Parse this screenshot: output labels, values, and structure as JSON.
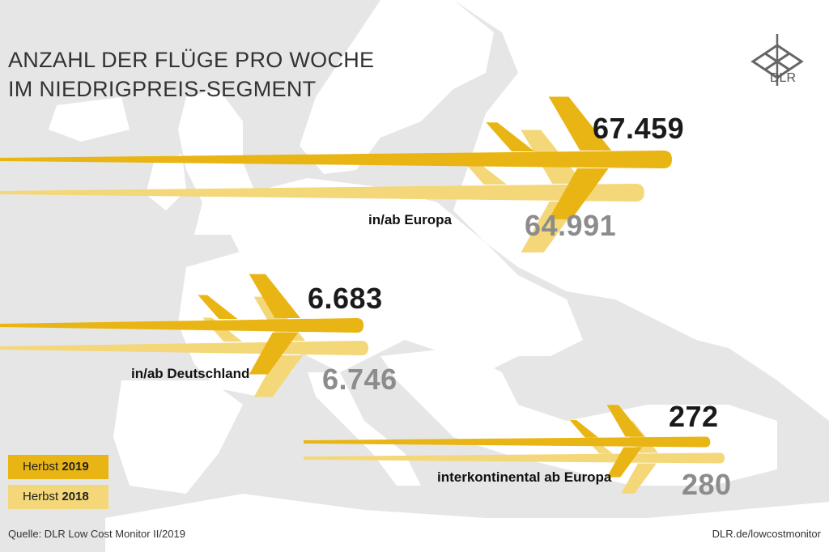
{
  "title": {
    "line1": "ANZAHL DER FLÜGE PRO WOCHE",
    "line2": "IM NIEDRIGPREIS-SEGMENT"
  },
  "logo": {
    "text": "DLR",
    "icon": "dlr-logo-icon"
  },
  "colors": {
    "series_2019": "#e9b514",
    "series_2018": "#f4d779",
    "background": "#e6e6e6",
    "land": "#ffffff"
  },
  "chart_data": {
    "type": "bar",
    "categories": [
      "in/ab Europa",
      "in/ab Deutschland",
      "interkontinental ab Europa"
    ],
    "series": [
      {
        "name": "Herbst 2019",
        "values": [
          67459,
          6683,
          272
        ],
        "labels": [
          "67.459",
          "6.683",
          "272"
        ]
      },
      {
        "name": "Herbst 2018",
        "values": [
          64991,
          6746,
          280
        ],
        "labels": [
          "64.991",
          "6.746",
          "280"
        ]
      }
    ]
  },
  "legend": [
    {
      "prefix": "Herbst",
      "year": "2019"
    },
    {
      "prefix": "Herbst",
      "year": "2018"
    }
  ],
  "footer": {
    "source": "Quelle: DLR Low Cost Monitor II/2019",
    "link": "DLR.de/lowcostmonitor"
  }
}
